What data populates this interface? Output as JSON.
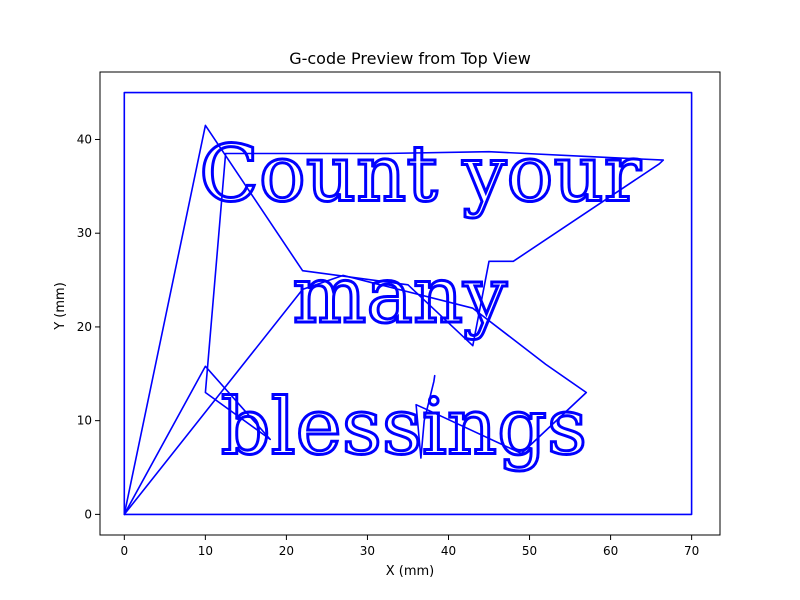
{
  "chart_data": {
    "type": "line",
    "title": "G-code Preview from Top View",
    "xlabel": "X (mm)",
    "ylabel": "Y (mm)",
    "xlim": [
      -3,
      73.5
    ],
    "ylim": [
      -2.2,
      47.2
    ],
    "xticks": [
      0,
      10,
      20,
      30,
      40,
      50,
      60,
      70
    ],
    "yticks": [
      0,
      10,
      20,
      30,
      40
    ],
    "grid": false,
    "engraved_text": [
      "Count your",
      "many",
      "blessings"
    ],
    "series": [
      {
        "color": "#0000ff",
        "paths": [
          {
            "x": [
              0,
              70,
              70,
              0,
              0
            ],
            "y": [
              0,
              0,
              45,
              45,
              0
            ]
          },
          {
            "x": [
              0,
              10,
              18,
              10,
              12.5,
              17,
              32,
              45,
              57,
              66.5,
              66,
              48,
              45,
              43,
              35,
              22,
              10,
              0
            ],
            "y": [
              0,
              15.8,
              8,
              13,
              38.5,
              38.5,
              38.5,
              38.7,
              38.2,
              37.8,
              37.4,
              27,
              27,
              18,
              24.5,
              26,
              41.5,
              0
            ]
          },
          {
            "x": [
              38.3,
              38.2,
              37,
              36.6,
              36,
              37.8,
              49,
              57,
              52,
              43,
              27,
              22,
              0
            ],
            "y": [
              14.8,
              14.2,
              10,
              6,
              11.7,
              11,
              6.5,
              13,
              16,
              22,
              25.5,
              24,
              0
            ]
          }
        ]
      }
    ]
  }
}
